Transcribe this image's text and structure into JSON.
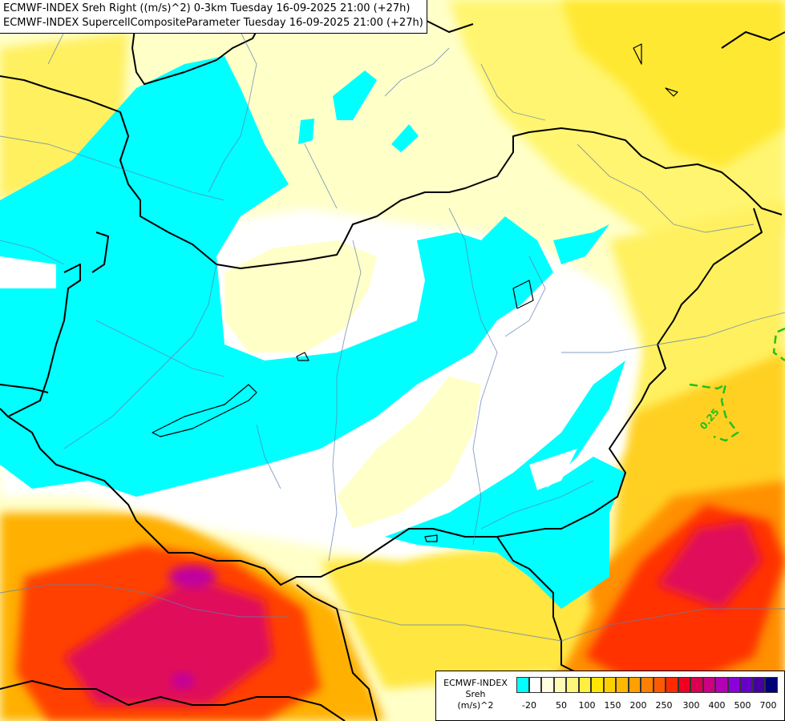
{
  "title": {
    "line1": "ECMWF-INDEX Sreh Right ((m/s)^2) 0-3km Tuesday 16-09-2025 21:00 (+27h)",
    "line2": "ECMWF-INDEX SupercellCompositeParameter Tuesday 16-09-2025 21:00 (+27h)"
  },
  "legend": {
    "line1": "ECMWF-INDEX",
    "line2": "Sreh",
    "line3": "(m/s)^2",
    "ticks": [
      "-20",
      "50",
      "100",
      "150",
      "200",
      "250",
      "300",
      "400",
      "500",
      "700"
    ],
    "colors": [
      "#00ffff",
      "#ffffff",
      "#fffde0",
      "#fffab4",
      "#fff57a",
      "#ffef40",
      "#ffe600",
      "#ffd000",
      "#ffb800",
      "#ff9f00",
      "#ff8000",
      "#ff5a00",
      "#ff2a00",
      "#f00020",
      "#dc0050",
      "#cc0080",
      "#b400b4",
      "#8c00dc",
      "#6400c8",
      "#4600a0",
      "#000078"
    ]
  },
  "contour_label": "0.25",
  "colors": {
    "cyan": "#00ffff",
    "pale_yellow": "#ffffc0",
    "yellow": "#ffff40",
    "orange": "#ffa500",
    "red": "#ff2020",
    "crimson": "#e0105a",
    "magenta": "#c000a0",
    "contour_green": "#20c020"
  }
}
